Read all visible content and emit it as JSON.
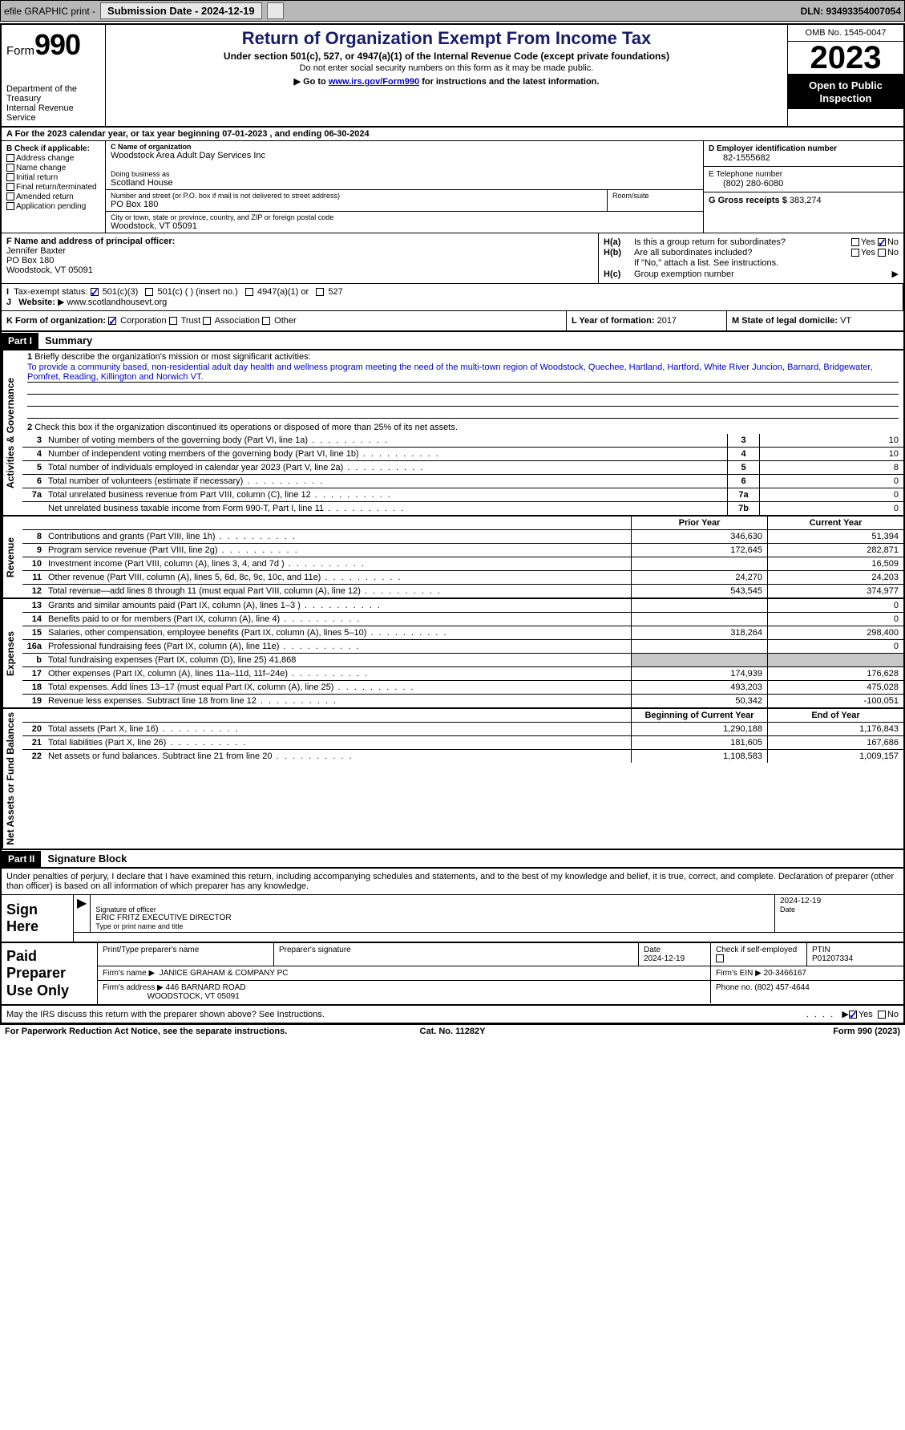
{
  "topbar": {
    "efile": "efile GRAPHIC print -",
    "submission_label": "Submission Date - 2024-12-19",
    "dln": "DLN: 93493354007054"
  },
  "header": {
    "form": "Form",
    "form_num": "990",
    "dept": "Department of the Treasury",
    "irs": "Internal Revenue Service",
    "title": "Return of Organization Exempt From Income Tax",
    "sub1": "Under section 501(c), 527, or 4947(a)(1) of the Internal Revenue Code (except private foundations)",
    "sub2": "Do not enter social security numbers on this form as it may be made public.",
    "sub3_pre": "Go to ",
    "sub3_link": "www.irs.gov/Form990",
    "sub3_post": " for instructions and the latest information.",
    "omb": "OMB No. 1545-0047",
    "year": "2023",
    "inspect": "Open to Public Inspection"
  },
  "row_a": "A For the 2023 calendar year, or tax year beginning 07-01-2023   , and ending 06-30-2024",
  "box_b": {
    "hdr": "B Check if applicable:",
    "opts": [
      "Address change",
      "Name change",
      "Initial return",
      "Final return/terminated",
      "Amended return",
      "Application pending"
    ]
  },
  "box_c": {
    "name_lbl": "C Name of organization",
    "name": "Woodstock Area Adult Day Services Inc",
    "dba_lbl": "Doing business as",
    "dba": "Scotland House",
    "addr_lbl": "Number and street (or P.O. box if mail is not delivered to street address)",
    "addr": "PO Box 180",
    "room_lbl": "Room/suite",
    "city_lbl": "City or town, state or province, country, and ZIP or foreign postal code",
    "city": "Woodstock, VT  05091"
  },
  "box_d": {
    "ein_lbl": "D Employer identification number",
    "ein": "82-1555682",
    "tel_lbl": "E Telephone number",
    "tel": "(802) 280-6080",
    "gross_lbl": "G Gross receipts $",
    "gross": "383,274"
  },
  "box_f": {
    "lbl": "F  Name and address of principal officer:",
    "name": "Jennifer Baxter",
    "addr1": "PO Box 180",
    "addr2": "Woodstock, VT  05091"
  },
  "box_h": {
    "ha_lbl": "H(a)",
    "ha_txt": "Is this a group return for subordinates?",
    "hb_lbl": "H(b)",
    "hb_txt": "Are all subordinates included?",
    "hb_note": "If \"No,\" attach a list. See instructions.",
    "hc_lbl": "H(c)",
    "hc_txt": "Group exemption number",
    "yes": "Yes",
    "no": "No"
  },
  "row_i": {
    "lbl": "Tax-exempt status:",
    "o1": "501(c)(3)",
    "o2": "501(c) (  ) (insert no.)",
    "o3": "4947(a)(1) or",
    "o4": "527"
  },
  "row_j": {
    "lbl": "Website:",
    "val": "www.scotlandhousevt.org"
  },
  "row_k": {
    "k_lbl": "K Form of organization:",
    "corp": "Corporation",
    "trust": "Trust",
    "assoc": "Association",
    "other": "Other",
    "l_lbl": "L Year of formation:",
    "l_val": "2017",
    "m_lbl": "M State of legal domicile:",
    "m_val": "VT"
  },
  "part1": {
    "hdr": "Part I",
    "title": "Summary"
  },
  "summary": {
    "gov_label": "Activities & Governance",
    "rev_label": "Revenue",
    "exp_label": "Expenses",
    "net_label": "Net Assets or Fund Balances",
    "line1_lbl": "Briefly describe the organization's mission or most significant activities:",
    "line1_txt": "To provide a community based, non-residential adult day health and wellness program meeting the need of the multi-town region of Woodstock, Quechee, Hartland, Hartford, White River Juncion, Barnard, Bridgewater, Pomfret, Reading, Killington and Norwich VT.",
    "line2": "Check this box      if the organization discontinued its operations or disposed of more than 25% of its net assets.",
    "gov_lines": [
      {
        "n": "3",
        "t": "Number of voting members of the governing body (Part VI, line 1a)",
        "bn": "3",
        "bv": "10"
      },
      {
        "n": "4",
        "t": "Number of independent voting members of the governing body (Part VI, line 1b)",
        "bn": "4",
        "bv": "10"
      },
      {
        "n": "5",
        "t": "Total number of individuals employed in calendar year 2023 (Part V, line 2a)",
        "bn": "5",
        "bv": "8"
      },
      {
        "n": "6",
        "t": "Total number of volunteers (estimate if necessary)",
        "bn": "6",
        "bv": "0"
      },
      {
        "n": "7a",
        "t": "Total unrelated business revenue from Part VIII, column (C), line 12",
        "bn": "7a",
        "bv": "0"
      },
      {
        "n": "",
        "t": "Net unrelated business taxable income from Form 990-T, Part I, line 11",
        "bn": "7b",
        "bv": "0"
      }
    ],
    "py_hdr": "Prior Year",
    "cy_hdr": "Current Year",
    "rev_lines": [
      {
        "n": "8",
        "t": "Contributions and grants (Part VIII, line 1h)",
        "py": "346,630",
        "cy": "51,394"
      },
      {
        "n": "9",
        "t": "Program service revenue (Part VIII, line 2g)",
        "py": "172,645",
        "cy": "282,871"
      },
      {
        "n": "10",
        "t": "Investment income (Part VIII, column (A), lines 3, 4, and 7d )",
        "py": "",
        "cy": "16,509"
      },
      {
        "n": "11",
        "t": "Other revenue (Part VIII, column (A), lines 5, 6d, 8c, 9c, 10c, and 11e)",
        "py": "24,270",
        "cy": "24,203"
      },
      {
        "n": "12",
        "t": "Total revenue—add lines 8 through 11 (must equal Part VIII, column (A), line 12)",
        "py": "543,545",
        "cy": "374,977"
      }
    ],
    "exp_lines": [
      {
        "n": "13",
        "t": "Grants and similar amounts paid (Part IX, column (A), lines 1–3 )",
        "py": "",
        "cy": "0"
      },
      {
        "n": "14",
        "t": "Benefits paid to or for members (Part IX, column (A), line 4)",
        "py": "",
        "cy": "0"
      },
      {
        "n": "15",
        "t": "Salaries, other compensation, employee benefits (Part IX, column (A), lines 5–10)",
        "py": "318,264",
        "cy": "298,400"
      },
      {
        "n": "16a",
        "t": "Professional fundraising fees (Part IX, column (A), line 11e)",
        "py": "",
        "cy": "0"
      },
      {
        "n": "b",
        "t": "Total fundraising expenses (Part IX, column (D), line 25) 41,868",
        "py": "",
        "cy": "",
        "shade": true
      },
      {
        "n": "17",
        "t": "Other expenses (Part IX, column (A), lines 11a–11d, 11f–24e)",
        "py": "174,939",
        "cy": "176,628"
      },
      {
        "n": "18",
        "t": "Total expenses. Add lines 13–17 (must equal Part IX, column (A), line 25)",
        "py": "493,203",
        "cy": "475,028"
      },
      {
        "n": "19",
        "t": "Revenue less expenses. Subtract line 18 from line 12",
        "py": "50,342",
        "cy": "-100,051"
      }
    ],
    "net_hdr_py": "Beginning of Current Year",
    "net_hdr_cy": "End of Year",
    "net_lines": [
      {
        "n": "20",
        "t": "Total assets (Part X, line 16)",
        "py": "1,290,188",
        "cy": "1,176,843"
      },
      {
        "n": "21",
        "t": "Total liabilities (Part X, line 26)",
        "py": "181,605",
        "cy": "167,686"
      },
      {
        "n": "22",
        "t": "Net assets or fund balances. Subtract line 21 from line 20",
        "py": "1,108,583",
        "cy": "1,009,157"
      }
    ]
  },
  "part2": {
    "hdr": "Part II",
    "title": "Signature Block"
  },
  "sig": {
    "decl": "Under penalties of perjury, I declare that I have examined this return, including accompanying schedules and statements, and to the best of my knowledge and belief, it is true, correct, and complete. Declaration of preparer (other than officer) is based on all information of which preparer has any knowledge.",
    "sign_here": "Sign Here",
    "sig_officer_lbl": "Signature of officer",
    "date_lbl": "Date",
    "date_val": "2024-12-19",
    "officer": "ERIC FRITZ  EXECUTIVE DIRECTOR",
    "type_lbl": "Type or print name and title"
  },
  "prep": {
    "title": "Paid Preparer Use Only",
    "name_lbl": "Print/Type preparer's name",
    "sig_lbl": "Preparer's signature",
    "date_lbl": "Date",
    "date_val": "2024-12-19",
    "check_lbl": "Check       if self-employed",
    "ptin_lbl": "PTIN",
    "ptin": "P01207334",
    "firm_name_lbl": "Firm's name",
    "firm_name": "JANICE GRAHAM & COMPANY PC",
    "firm_ein_lbl": "Firm's EIN",
    "firm_ein": "20-3466167",
    "firm_addr_lbl": "Firm's address",
    "firm_addr1": "446 BARNARD ROAD",
    "firm_addr2": "WOODSTOCK, VT  05091",
    "phone_lbl": "Phone no.",
    "phone": "(802) 457-4644"
  },
  "footer": {
    "discuss": "May the IRS discuss this return with the preparer shown above? See Instructions.",
    "yes": "Yes",
    "no": "No",
    "paperwork": "For Paperwork Reduction Act Notice, see the separate instructions.",
    "cat": "Cat. No. 11282Y",
    "form": "Form 990 (2023)"
  },
  "colors": {
    "link": "#0000cc"
  }
}
